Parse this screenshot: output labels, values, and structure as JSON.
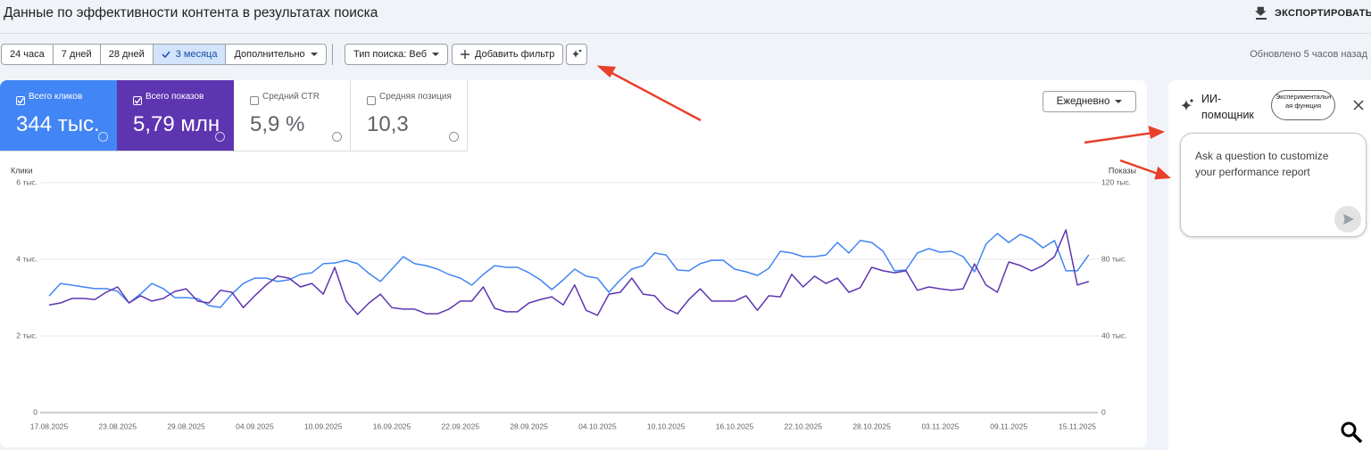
{
  "header": {
    "title": "Данные по эффективности контента в результатах поиска",
    "export": "ЭКСПОРТИРОВАТЬ"
  },
  "filters": {
    "periods": [
      "24 часа",
      "7 дней",
      "28 дней",
      "3 месяца"
    ],
    "selected_period": 3,
    "more": "Дополнительно",
    "search_type": "Тип поиска: Веб",
    "add_filter": "Добавить фильтр",
    "updated": "Обновлено 5 часов назад"
  },
  "metrics": [
    {
      "label": "Всего кликов",
      "value": "344 тыс.",
      "checked": true,
      "color": "#4285f4"
    },
    {
      "label": "Всего показов",
      "value": "5,79 млн",
      "checked": true,
      "color": "#5e35b1"
    },
    {
      "label": "Средний CTR",
      "value": "5,9 %",
      "checked": false,
      "color": "#00897b"
    },
    {
      "label": "Средняя позиция",
      "value": "10,3",
      "checked": false,
      "color": "#e8710a"
    }
  ],
  "granularity": "Ежедневно",
  "chart_data": {
    "type": "line",
    "ylabel": "Клики",
    "y2label": "Показы",
    "grid": true,
    "categories": [
      "17.08.2025",
      null,
      null,
      null,
      null,
      null,
      "23.08.2025",
      null,
      null,
      null,
      null,
      null,
      "29.08.2025",
      null,
      null,
      null,
      null,
      null,
      "04.09.2025",
      null,
      null,
      null,
      null,
      null,
      "10.09.2025",
      null,
      null,
      null,
      null,
      null,
      "16.09.2025",
      null,
      null,
      null,
      null,
      null,
      "22.09.2025",
      null,
      null,
      null,
      null,
      null,
      "28.09.2025",
      null,
      null,
      null,
      null,
      null,
      "04.10.2025",
      null,
      null,
      null,
      null,
      null,
      "10.10.2025",
      null,
      null,
      null,
      null,
      null,
      "16.10.2025",
      null,
      null,
      null,
      null,
      null,
      "22.10.2025",
      null,
      null,
      null,
      null,
      null,
      "28.10.2025",
      null,
      null,
      null,
      null,
      null,
      "03.11.2025",
      null,
      null,
      null,
      null,
      null,
      "09.11.2025",
      null,
      null,
      null,
      null,
      null,
      "15.11.2025",
      null
    ],
    "ylim": [
      0,
      6000
    ],
    "yticks": [
      0,
      {
        "value": 2000,
        "label": "2 тыс."
      },
      {
        "value": 4000,
        "label": "4 тыс."
      },
      {
        "value": 6000,
        "label": "6 тыс."
      }
    ],
    "y2lim": [
      0,
      120000
    ],
    "y2ticks": [
      0,
      {
        "value": 40000,
        "label": "40 тыс."
      },
      {
        "value": 80000,
        "label": "80 тыс."
      },
      {
        "value": 120000,
        "label": "120 тыс."
      }
    ],
    "series": [
      {
        "name": "Клики",
        "color": "#4285f4",
        "values": [
          3045,
          3370,
          3325,
          3280,
          3235,
          3235,
          3165,
          2860,
          3095,
          3370,
          3235,
          3000,
          3000,
          2975,
          2790,
          2745,
          3095,
          3370,
          3510,
          3510,
          3420,
          3465,
          3605,
          3650,
          3885,
          3905,
          3975,
          3885,
          3630,
          3420,
          3745,
          4070,
          3885,
          3835,
          3745,
          3605,
          3510,
          3325,
          3605,
          3835,
          3790,
          3790,
          3650,
          3465,
          3210,
          3465,
          3745,
          3560,
          3510,
          3140,
          3465,
          3745,
          3835,
          4165,
          4115,
          3720,
          3700,
          3885,
          3975,
          3975,
          3745,
          3675,
          3580,
          3765,
          4210,
          4165,
          4070,
          4070,
          4115,
          4440,
          4165,
          4490,
          4440,
          4210,
          3700,
          3720,
          4165,
          4280,
          4185,
          4210,
          4070,
          3675,
          4395,
          4675,
          4440,
          4650,
          4535,
          4300,
          4490,
          3700,
          3700,
          4115
        ]
      },
      {
        "name": "Показы",
        "color": "#5e35b1",
        "axis": "y2",
        "values": [
          56200,
          57200,
          59600,
          59600,
          59000,
          62800,
          65600,
          57200,
          61000,
          58200,
          59600,
          63200,
          64600,
          58200,
          57200,
          63800,
          62800,
          54800,
          61000,
          66600,
          71200,
          70200,
          65600,
          67400,
          61800,
          75800,
          58200,
          51200,
          57200,
          61800,
          54800,
          54000,
          54000,
          51600,
          51600,
          54000,
          58200,
          58200,
          65600,
          54400,
          52600,
          52600,
          57200,
          59000,
          60400,
          56200,
          66600,
          53400,
          50800,
          61800,
          62800,
          70200,
          61800,
          61000,
          54400,
          51600,
          59000,
          64600,
          58200,
          58200,
          58200,
          61000,
          53400,
          61000,
          60400,
          72200,
          65600,
          71200,
          67400,
          70200,
          62800,
          65200,
          75800,
          74000,
          73000,
          74000,
          63800,
          65600,
          64600,
          63800,
          64600,
          77600,
          66600,
          62800,
          78600,
          76800,
          74000,
          76800,
          81400,
          95400,
          66600,
          68400
        ]
      }
    ]
  },
  "assistant": {
    "title": "ИИ-помощник",
    "badge": "Экспериментальная функция",
    "placeholder": "Ask a question to customize your performance report"
  }
}
